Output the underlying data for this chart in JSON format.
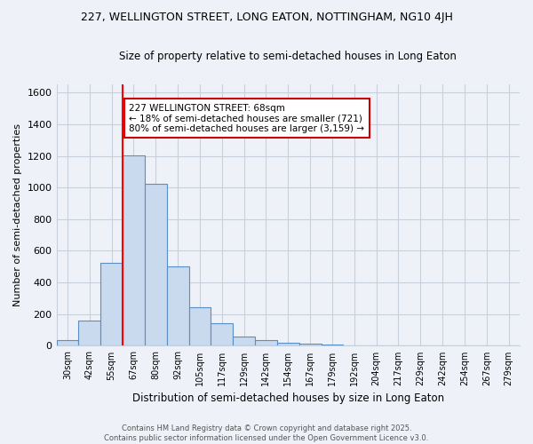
{
  "title": "227, WELLINGTON STREET, LONG EATON, NOTTINGHAM, NG10 4JH",
  "subtitle": "Size of property relative to semi-detached houses in Long Eaton",
  "xlabel": "Distribution of semi-detached houses by size in Long Eaton",
  "ylabel": "Number of semi-detached properties",
  "categories": [
    "30sqm",
    "42sqm",
    "55sqm",
    "67sqm",
    "80sqm",
    "92sqm",
    "105sqm",
    "117sqm",
    "129sqm",
    "142sqm",
    "154sqm",
    "167sqm",
    "179sqm",
    "192sqm",
    "204sqm",
    "217sqm",
    "229sqm",
    "242sqm",
    "254sqm",
    "267sqm",
    "279sqm"
  ],
  "values": [
    35,
    160,
    525,
    1205,
    1025,
    500,
    245,
    140,
    60,
    35,
    22,
    12,
    8,
    0,
    0,
    0,
    0,
    0,
    0,
    0,
    0
  ],
  "bar_color": "#c9d9ee",
  "bar_edge_color": "#5a8fc3",
  "redline_index": 3,
  "annotation_title": "227 WELLINGTON STREET: 68sqm",
  "annotation_line1": "← 18% of semi-detached houses are smaller (721)",
  "annotation_line2": "80% of semi-detached houses are larger (3,159) →",
  "annotation_box_color": "#ffffff",
  "annotation_box_edge": "#cc0000",
  "footer_line1": "Contains HM Land Registry data © Crown copyright and database right 2025.",
  "footer_line2": "Contains public sector information licensed under the Open Government Licence v3.0.",
  "background_color": "#eef2f8",
  "grid_color": "#c8d0dc",
  "ylim": [
    0,
    1650
  ],
  "yticks": [
    0,
    200,
    400,
    600,
    800,
    1000,
    1200,
    1400,
    1600
  ]
}
